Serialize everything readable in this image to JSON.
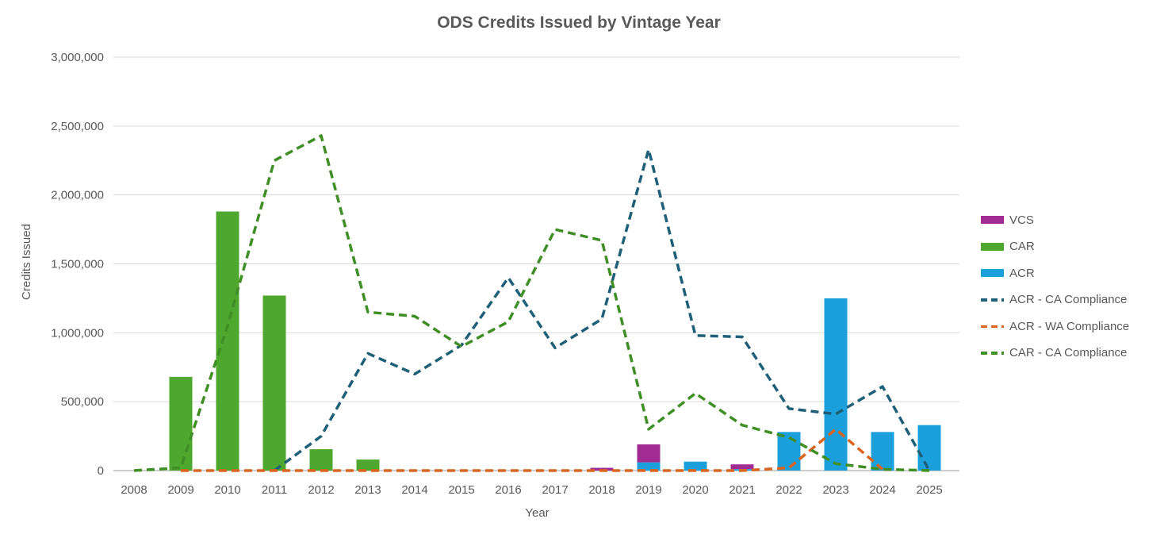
{
  "chart_title": "ODS Credits Issued by Vintage Year",
  "x_axis_title": "Year",
  "y_axis_title": "Credits Issued",
  "styles": {
    "text_color": "#595959",
    "grid_color": "#D9D9D9",
    "axis_line_color": "#BFBFBF",
    "background": "#FFFFFF"
  },
  "chart_data": {
    "type": "combo-bar-line",
    "title": "ODS Credits Issued by Vintage Year",
    "xlabel": "Year",
    "ylabel": "Credits Issued",
    "ylim": [
      0,
      3000000
    ],
    "ytick_step": 500000,
    "y_ticks": [
      "0",
      "500,000",
      "1,000,000",
      "1,500,000",
      "2,000,000",
      "2,500,000",
      "3,000,000"
    ],
    "grid": true,
    "legend_position": "right",
    "categories": [
      "2008",
      "2009",
      "2010",
      "2011",
      "2012",
      "2013",
      "2014",
      "2015",
      "2016",
      "2017",
      "2018",
      "2019",
      "2020",
      "2021",
      "2022",
      "2023",
      "2024",
      "2025"
    ],
    "bar_stack_order": [
      "CAR",
      "ACR",
      "VCS"
    ],
    "bar_series": [
      {
        "name": "VCS",
        "color": "#A02B93",
        "values": [
          0,
          0,
          0,
          0,
          0,
          0,
          0,
          0,
          0,
          0,
          20000,
          130000,
          0,
          35000,
          0,
          0,
          0,
          0
        ]
      },
      {
        "name": "CAR",
        "color": "#4EA72E",
        "values": [
          0,
          680000,
          1880000,
          1270000,
          155000,
          80000,
          0,
          0,
          0,
          0,
          0,
          0,
          0,
          0,
          0,
          0,
          0,
          0
        ]
      },
      {
        "name": "ACR",
        "color": "#1CA0DC",
        "values": [
          0,
          0,
          0,
          0,
          0,
          0,
          0,
          0,
          0,
          0,
          0,
          60000,
          65000,
          10000,
          280000,
          1250000,
          280000,
          330000
        ]
      }
    ],
    "line_series": [
      {
        "name": "ACR - CA Compliance",
        "color": "#1F5F78",
        "values": [
          null,
          null,
          null,
          0,
          250000,
          850000,
          700000,
          910000,
          1400000,
          890000,
          1100000,
          2330000,
          980000,
          970000,
          450000,
          410000,
          610000,
          0
        ]
      },
      {
        "name": "ACR - WA Compliance",
        "color": "#D9651F",
        "values": [
          null,
          0,
          0,
          0,
          0,
          0,
          0,
          0,
          0,
          0,
          0,
          0,
          0,
          0,
          20000,
          300000,
          10000,
          null
        ]
      },
      {
        "name": "CAR - CA Compliance",
        "color": "#3F8E26",
        "values": [
          0,
          20000,
          1050000,
          2250000,
          2430000,
          1150000,
          1120000,
          900000,
          1080000,
          1750000,
          1670000,
          300000,
          560000,
          330000,
          240000,
          50000,
          10000,
          0
        ]
      }
    ],
    "legend": [
      {
        "label": "VCS",
        "swatch": "bar",
        "color": "#A02B93"
      },
      {
        "label": "CAR",
        "swatch": "bar",
        "color": "#4EA72E"
      },
      {
        "label": "ACR",
        "swatch": "bar",
        "color": "#1CA0DC"
      },
      {
        "label": "ACR - CA Compliance",
        "swatch": "dash",
        "color": "#1F5F78"
      },
      {
        "label": "ACR - WA Compliance",
        "swatch": "dash",
        "color": "#D9651F"
      },
      {
        "label": "CAR - CA Compliance",
        "swatch": "dash",
        "color": "#3F8E26"
      }
    ]
  }
}
